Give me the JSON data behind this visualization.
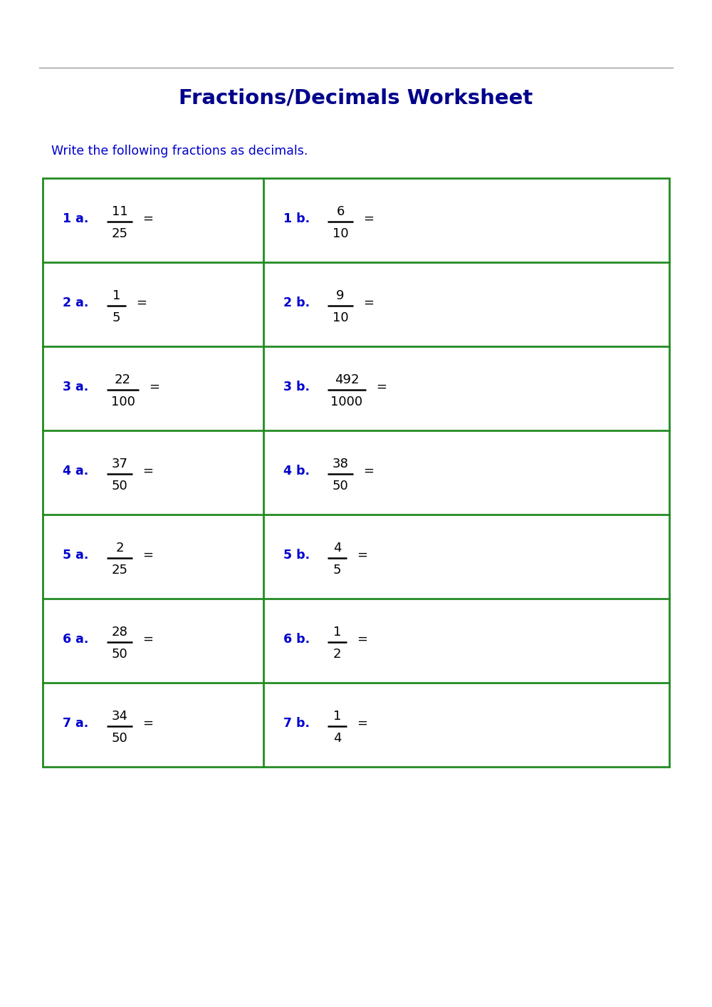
{
  "title": "Fractions/Decimals Worksheet",
  "instruction": "Write the following fractions as decimals.",
  "title_color": "#00008B",
  "instruction_color": "#0000CD",
  "label_color": "#0000CD",
  "fraction_color": "#000000",
  "grid_color": "#228B22",
  "bg_color": "#FFFFFF",
  "top_line_color": "#999999",
  "rows": [
    {
      "left_label": "1 a.",
      "left_num": "11",
      "left_den": "25",
      "right_label": "1 b.",
      "right_num": "6",
      "right_den": "10"
    },
    {
      "left_label": "2 a.",
      "left_num": "1",
      "left_den": "5",
      "right_label": "2 b.",
      "right_num": "9",
      "right_den": "10"
    },
    {
      "left_label": "3 a.",
      "left_num": "22",
      "left_den": "100",
      "right_label": "3 b.",
      "right_num": "492",
      "right_den": "1000"
    },
    {
      "left_label": "4 a.",
      "left_num": "37",
      "left_den": "50",
      "right_label": "4 b.",
      "right_num": "38",
      "right_den": "50"
    },
    {
      "left_label": "5 a.",
      "left_num": "2",
      "left_den": "25",
      "right_label": "5 b.",
      "right_num": "4",
      "right_den": "5"
    },
    {
      "left_label": "6 a.",
      "left_num": "28",
      "left_den": "50",
      "right_label": "6 b.",
      "right_num": "1",
      "right_den": "2"
    },
    {
      "left_label": "7 a.",
      "left_num": "34",
      "left_den": "50",
      "right_label": "7 b.",
      "right_num": "1",
      "right_den": "4"
    }
  ]
}
